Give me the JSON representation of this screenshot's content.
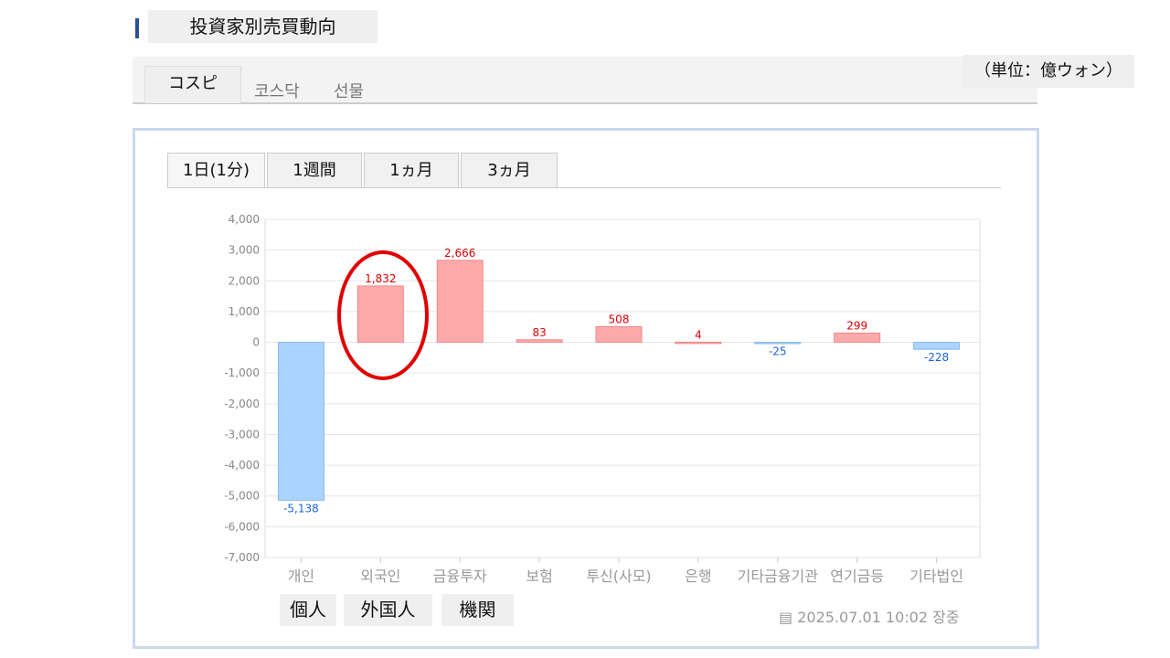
{
  "title": "投資家別売買動向",
  "unit": "（単位：億ウォン）",
  "market_tabs": [
    "コスピ",
    "코스닥",
    "선물"
  ],
  "period_tabs": [
    "1日(1分)",
    "1週間",
    "1ヵ月",
    "3ヵ月"
  ],
  "investor_tags": [
    "個人",
    "外国人",
    "機関"
  ],
  "timestamp": "2025.07.01 10:02 장중",
  "colors": {
    "positive": "#ffaaaa",
    "positive_label": "#e00000",
    "negative": "#aad4ff",
    "negative_label": "#1a66e0",
    "highlight_circle": "#e00000"
  },
  "chart_data": {
    "type": "bar",
    "categories": [
      "개인",
      "외국인",
      "금융투자",
      "보험",
      "투신(사모)",
      "은행",
      "기타금융기관",
      "연기금등",
      "기타법인"
    ],
    "values": [
      -5138,
      1832,
      2666,
      83,
      508,
      4,
      -25,
      299,
      -228
    ],
    "value_labels": [
      "-5,138",
      "1,832",
      "2,666",
      "83",
      "508",
      "4",
      "-25",
      "299",
      "-228"
    ],
    "yticks": [
      "4,000",
      "3,000",
      "2,000",
      "1,000",
      "0",
      "-1,000",
      "-2,000",
      "-3,000",
      "-4,000",
      "-5,000",
      "-6,000",
      "-7,000"
    ],
    "ylim": [
      -7000,
      4000
    ],
    "grid": true,
    "highlighted_category": "외국인"
  }
}
